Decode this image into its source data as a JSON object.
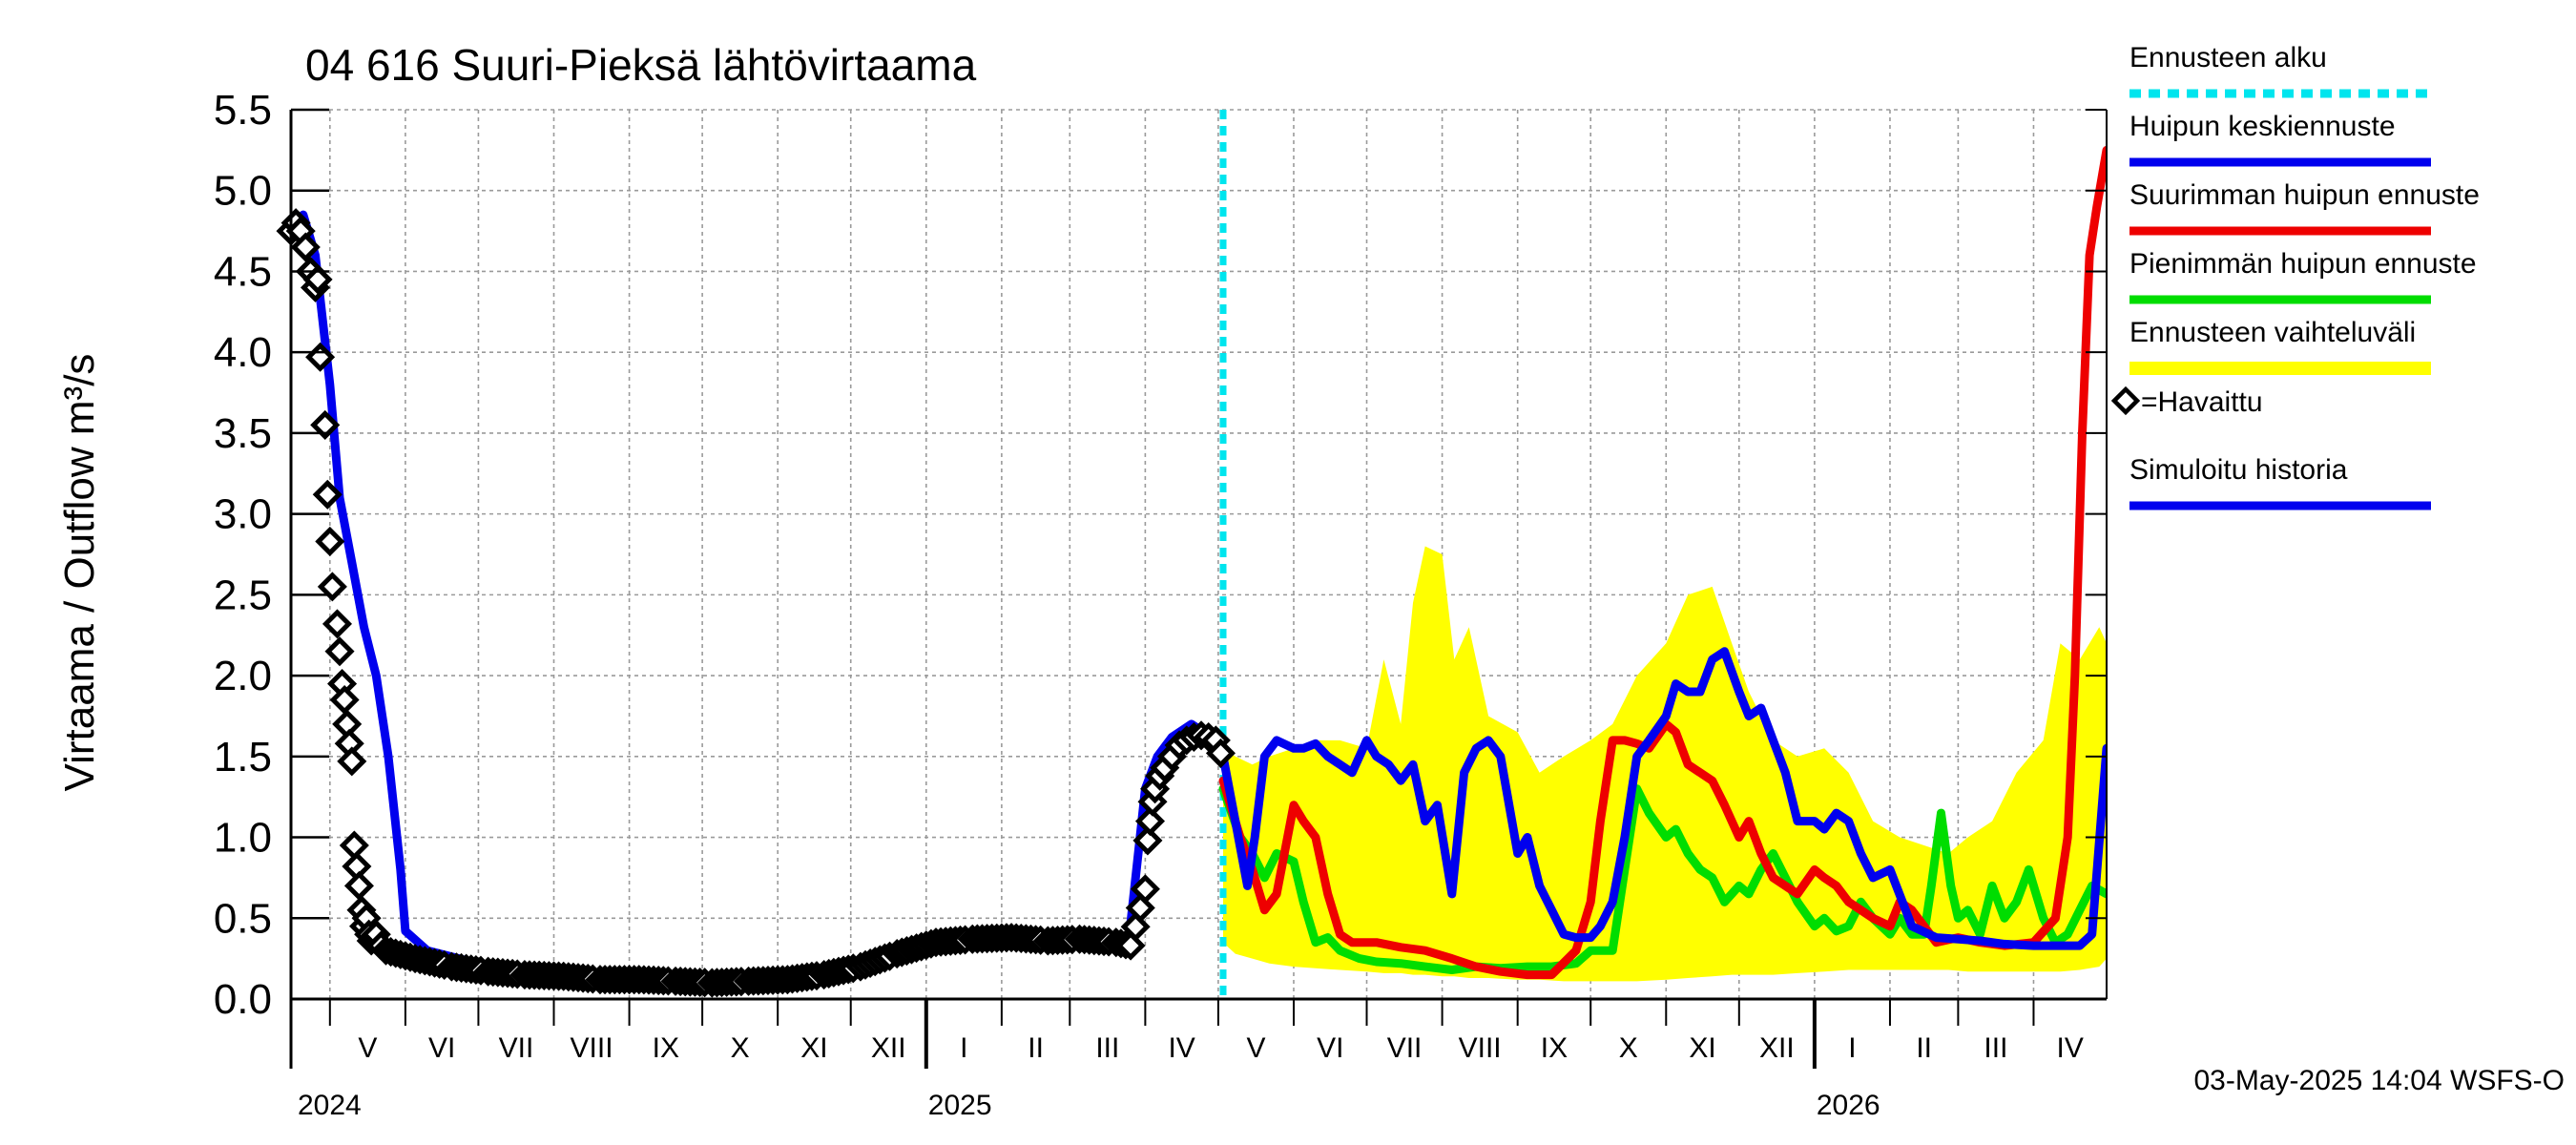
{
  "chart_data": {
    "type": "line",
    "title": "04 616 Suuri-Pieksä lähtövirtaama",
    "ylabel": "Virtaama / Outflow    m³/s",
    "ylim": [
      0.0,
      5.5
    ],
    "yticks": [
      "0.0",
      "0.5",
      "1.0",
      "1.5",
      "2.0",
      "2.5",
      "3.0",
      "3.5",
      "4.0",
      "4.5",
      "5.0",
      "5.5"
    ],
    "grid": true,
    "legend_position": "right",
    "xlim": [
      "2024-04-15",
      "2026-05-01"
    ],
    "months": [
      {
        "label": "V",
        "start": "2024-05-01"
      },
      {
        "label": "VI",
        "start": "2024-06-01"
      },
      {
        "label": "VII",
        "start": "2024-07-01"
      },
      {
        "label": "VIII",
        "start": "2024-08-01"
      },
      {
        "label": "IX",
        "start": "2024-09-01"
      },
      {
        "label": "X",
        "start": "2024-10-01"
      },
      {
        "label": "XI",
        "start": "2024-11-01"
      },
      {
        "label": "XII",
        "start": "2024-12-01"
      },
      {
        "label": "I",
        "start": "2025-01-01"
      },
      {
        "label": "II",
        "start": "2025-02-01"
      },
      {
        "label": "III",
        "start": "2025-03-01"
      },
      {
        "label": "IV",
        "start": "2025-04-01"
      },
      {
        "label": "V",
        "start": "2025-05-01"
      },
      {
        "label": "VI",
        "start": "2025-06-01"
      },
      {
        "label": "VII",
        "start": "2025-07-01"
      },
      {
        "label": "VIII",
        "start": "2025-08-01"
      },
      {
        "label": "IX",
        "start": "2025-09-01"
      },
      {
        "label": "X",
        "start": "2025-10-01"
      },
      {
        "label": "XI",
        "start": "2025-11-01"
      },
      {
        "label": "XII",
        "start": "2025-12-01"
      },
      {
        "label": "I",
        "start": "2026-01-01"
      },
      {
        "label": "II",
        "start": "2026-02-01"
      },
      {
        "label": "III",
        "start": "2026-03-01"
      },
      {
        "label": "IV",
        "start": "2026-04-01"
      }
    ],
    "years": [
      {
        "label": "2024",
        "date": "2024-04-15"
      },
      {
        "label": "2025",
        "date": "2025-01-01"
      },
      {
        "label": "2026",
        "date": "2026-01-01"
      }
    ],
    "forecast_start": "2025-05-03",
    "timestamp": "03-May-2025 14:04 WSFS-O",
    "legend": [
      {
        "label": "Ennusteen alku",
        "color": "#00e5ee",
        "style": "dashed"
      },
      {
        "label": "Huipun keskiennuste",
        "color": "#0000ee",
        "style": "line"
      },
      {
        "label": "Suurimman huipun ennuste",
        "color": "#ee0000",
        "style": "line"
      },
      {
        "label": "Pienimmän huipun ennuste",
        "color": "#00dd00",
        "style": "line"
      },
      {
        "label": "Ennusteen vaihteluväli",
        "color": "#ffff00",
        "style": "band"
      },
      {
        "label": "=Havaittu",
        "color": "#000000",
        "style": "marker"
      },
      {
        "label": "Simuloitu historia",
        "color": "#0000ee",
        "style": "line"
      }
    ],
    "series": [
      {
        "name": "Ennusteen vaihteluväli",
        "color": "#ffff00",
        "kind": "band",
        "x": [
          "2025-05-03",
          "2025-05-08",
          "2025-05-15",
          "2025-05-22",
          "2025-06-01",
          "2025-06-10",
          "2025-06-20",
          "2025-07-01",
          "2025-07-08",
          "2025-07-15",
          "2025-07-20",
          "2025-07-25",
          "2025-08-01",
          "2025-08-06",
          "2025-08-12",
          "2025-08-20",
          "2025-09-01",
          "2025-09-10",
          "2025-09-20",
          "2025-10-01",
          "2025-10-10",
          "2025-10-20",
          "2025-11-01",
          "2025-11-10",
          "2025-11-20",
          "2025-11-28",
          "2025-12-05",
          "2025-12-15",
          "2025-12-25",
          "2026-01-05",
          "2026-01-15",
          "2026-01-25",
          "2026-02-05",
          "2026-02-15",
          "2026-02-25",
          "2026-03-05",
          "2026-03-15",
          "2026-03-25",
          "2026-04-05",
          "2026-04-12",
          "2026-04-20",
          "2026-04-28",
          "2026-05-01"
        ],
        "low": [
          0.35,
          0.28,
          0.25,
          0.22,
          0.2,
          0.19,
          0.18,
          0.17,
          0.16,
          0.16,
          0.15,
          0.15,
          0.14,
          0.14,
          0.13,
          0.13,
          0.12,
          0.12,
          0.11,
          0.11,
          0.11,
          0.11,
          0.12,
          0.13,
          0.14,
          0.15,
          0.15,
          0.15,
          0.16,
          0.17,
          0.18,
          0.18,
          0.18,
          0.18,
          0.18,
          0.17,
          0.17,
          0.17,
          0.17,
          0.17,
          0.18,
          0.2,
          0.25
        ],
        "high": [
          1.55,
          1.5,
          1.45,
          1.5,
          1.55,
          1.6,
          1.6,
          1.55,
          2.1,
          1.7,
          2.45,
          2.8,
          2.75,
          2.1,
          2.3,
          1.75,
          1.65,
          1.4,
          1.5,
          1.6,
          1.7,
          2.0,
          2.2,
          2.5,
          2.55,
          2.2,
          1.9,
          1.6,
          1.5,
          1.55,
          1.4,
          1.1,
          1.0,
          0.95,
          0.9,
          1.0,
          1.1,
          1.4,
          1.6,
          2.2,
          2.1,
          2.3,
          2.2
        ]
      },
      {
        "name": "Simuloitu historia",
        "color": "#0000ee",
        "kind": "line",
        "x": [
          "2024-04-15",
          "2024-04-20",
          "2024-04-25",
          "2024-05-01",
          "2024-05-05",
          "2024-05-10",
          "2024-05-15",
          "2024-05-20",
          "2024-05-25",
          "2024-05-30",
          "2024-06-01",
          "2024-06-10",
          "2024-07-01",
          "2024-08-01",
          "2024-09-01",
          "2024-10-01",
          "2024-11-01",
          "2024-12-01",
          "2025-01-01",
          "2025-02-01",
          "2025-03-01",
          "2025-03-25",
          "2025-04-01",
          "2025-04-06",
          "2025-04-12",
          "2025-04-20",
          "2025-04-25",
          "2025-05-03"
        ],
        "y": [
          4.75,
          4.85,
          4.6,
          3.8,
          3.1,
          2.7,
          2.3,
          2.0,
          1.5,
          0.8,
          0.42,
          0.3,
          0.22,
          0.16,
          0.13,
          0.11,
          0.13,
          0.22,
          0.35,
          0.38,
          0.37,
          0.33,
          1.3,
          1.5,
          1.62,
          1.7,
          1.65,
          1.5
        ]
      },
      {
        "name": "Havaittu",
        "color": "#000000",
        "kind": "markers",
        "x": [
          "2024-04-15",
          "2024-04-17",
          "2024-04-19",
          "2024-04-21",
          "2024-04-23",
          "2024-04-25",
          "2024-04-26",
          "2024-04-27",
          "2024-04-29",
          "2024-04-30",
          "2024-05-01",
          "2024-05-02",
          "2024-05-04",
          "2024-05-05",
          "2024-05-06",
          "2024-05-07",
          "2024-05-08",
          "2024-05-09",
          "2024-05-10",
          "2024-05-11",
          "2024-05-12",
          "2024-05-13",
          "2024-05-14",
          "2024-05-15",
          "2024-05-16",
          "2024-05-17",
          "2024-05-18",
          "2024-05-19",
          "2024-05-20",
          "2024-05-22",
          "2024-05-24",
          "2024-06-05",
          "2024-06-20",
          "2024-07-05",
          "2024-07-20",
          "2024-08-05",
          "2024-08-20",
          "2024-09-05",
          "2024-09-20",
          "2024-10-05",
          "2024-10-20",
          "2024-11-05",
          "2024-11-20",
          "2024-12-05",
          "2024-12-20",
          "2025-01-05",
          "2025-01-20",
          "2025-02-05",
          "2025-02-20",
          "2025-03-05",
          "2025-03-20",
          "2025-03-26",
          "2025-04-01",
          "2025-04-02",
          "2025-04-03",
          "2025-04-04",
          "2025-04-05",
          "2025-04-07",
          "2025-04-09",
          "2025-04-12",
          "2025-04-15",
          "2025-04-18",
          "2025-04-21",
          "2025-04-24",
          "2025-04-27",
          "2025-04-30",
          "2025-05-02"
        ],
        "y": [
          4.75,
          4.8,
          4.75,
          4.65,
          4.5,
          4.4,
          4.45,
          3.97,
          3.55,
          3.12,
          2.83,
          2.55,
          2.32,
          2.15,
          1.95,
          1.85,
          1.7,
          1.58,
          1.47,
          0.95,
          0.82,
          0.7,
          0.55,
          0.45,
          0.5,
          0.4,
          0.36,
          0.38,
          0.4,
          0.33,
          0.3,
          0.25,
          0.2,
          0.17,
          0.15,
          0.14,
          0.12,
          0.12,
          0.11,
          0.1,
          0.11,
          0.12,
          0.15,
          0.2,
          0.28,
          0.35,
          0.37,
          0.38,
          0.36,
          0.37,
          0.35,
          0.33,
          0.68,
          0.98,
          1.1,
          1.22,
          1.3,
          1.38,
          1.43,
          1.5,
          1.57,
          1.6,
          1.62,
          1.63,
          1.62,
          1.6,
          1.52
        ]
      },
      {
        "name": "Pienimmän huipun ennuste",
        "color": "#00dd00",
        "kind": "line",
        "x": [
          "2025-05-03",
          "2025-05-10",
          "2025-05-15",
          "2025-05-20",
          "2025-05-25",
          "2025-06-01",
          "2025-06-05",
          "2025-06-10",
          "2025-06-15",
          "2025-06-20",
          "2025-06-28",
          "2025-07-05",
          "2025-07-15",
          "2025-07-25",
          "2025-08-05",
          "2025-08-15",
          "2025-08-25",
          "2025-09-05",
          "2025-09-15",
          "2025-09-25",
          "2025-10-01",
          "2025-10-10",
          "2025-10-15",
          "2025-10-20",
          "2025-10-25",
          "2025-11-01",
          "2025-11-05",
          "2025-11-10",
          "2025-11-15",
          "2025-11-20",
          "2025-11-25",
          "2025-12-01",
          "2025-12-05",
          "2025-12-10",
          "2025-12-15",
          "2025-12-20",
          "2025-12-25",
          "2026-01-01",
          "2026-01-05",
          "2026-01-10",
          "2026-01-15",
          "2026-01-20",
          "2026-01-25",
          "2026-02-01",
          "2026-02-05",
          "2026-02-10",
          "2026-02-15",
          "2026-02-18",
          "2026-02-22",
          "2026-02-26",
          "2026-03-01",
          "2026-03-05",
          "2026-03-10",
          "2026-03-15",
          "2026-03-20",
          "2026-03-25",
          "2026-03-30",
          "2026-04-05",
          "2026-04-10",
          "2026-04-15",
          "2026-04-20",
          "2026-04-25",
          "2026-05-01"
        ],
        "y": [
          1.3,
          1.0,
          0.9,
          0.75,
          0.9,
          0.85,
          0.6,
          0.35,
          0.38,
          0.3,
          0.25,
          0.23,
          0.22,
          0.2,
          0.18,
          0.2,
          0.19,
          0.2,
          0.2,
          0.22,
          0.3,
          0.3,
          0.8,
          1.3,
          1.15,
          1.0,
          1.05,
          0.9,
          0.8,
          0.75,
          0.6,
          0.7,
          0.65,
          0.8,
          0.9,
          0.75,
          0.6,
          0.45,
          0.5,
          0.42,
          0.45,
          0.6,
          0.5,
          0.4,
          0.5,
          0.4,
          0.4,
          0.7,
          1.15,
          0.7,
          0.5,
          0.55,
          0.4,
          0.7,
          0.5,
          0.6,
          0.8,
          0.5,
          0.35,
          0.4,
          0.55,
          0.7,
          0.65
        ]
      },
      {
        "name": "Suurimman huipun ennuste",
        "color": "#ee0000",
        "kind": "line",
        "x": [
          "2025-05-03",
          "2025-05-10",
          "2025-05-15",
          "2025-05-20",
          "2025-05-25",
          "2025-06-01",
          "2025-06-05",
          "2025-06-10",
          "2025-06-15",
          "2025-06-20",
          "2025-06-25",
          "2025-07-05",
          "2025-07-15",
          "2025-07-25",
          "2025-08-05",
          "2025-08-15",
          "2025-08-25",
          "2025-09-05",
          "2025-09-15",
          "2025-09-25",
          "2025-10-01",
          "2025-10-05",
          "2025-10-10",
          "2025-10-15",
          "2025-10-20",
          "2025-10-25",
          "2025-11-01",
          "2025-11-05",
          "2025-11-10",
          "2025-11-15",
          "2025-11-20",
          "2025-11-25",
          "2025-12-01",
          "2025-12-05",
          "2025-12-10",
          "2025-12-15",
          "2025-12-20",
          "2025-12-25",
          "2026-01-01",
          "2026-01-05",
          "2026-01-10",
          "2026-01-15",
          "2026-01-20",
          "2026-01-25",
          "2026-02-01",
          "2026-02-05",
          "2026-02-10",
          "2026-02-15",
          "2026-02-20",
          "2026-03-01",
          "2026-03-10",
          "2026-03-20",
          "2026-04-01",
          "2026-04-10",
          "2026-04-15",
          "2026-04-18",
          "2026-04-21",
          "2026-04-24",
          "2026-04-27",
          "2026-05-01"
        ],
        "y": [
          1.35,
          1.0,
          0.8,
          0.55,
          0.65,
          1.2,
          1.1,
          1.0,
          0.65,
          0.4,
          0.35,
          0.35,
          0.32,
          0.3,
          0.25,
          0.2,
          0.17,
          0.15,
          0.15,
          0.3,
          0.6,
          1.1,
          1.6,
          1.6,
          1.58,
          1.55,
          1.7,
          1.65,
          1.45,
          1.4,
          1.35,
          1.2,
          1.0,
          1.1,
          0.9,
          0.75,
          0.7,
          0.65,
          0.8,
          0.75,
          0.7,
          0.6,
          0.55,
          0.5,
          0.45,
          0.6,
          0.55,
          0.45,
          0.35,
          0.38,
          0.35,
          0.33,
          0.35,
          0.5,
          1.0,
          2.0,
          3.5,
          4.6,
          4.9,
          5.25
        ]
      },
      {
        "name": "Huipun keskiennuste",
        "color": "#0000ee",
        "kind": "line",
        "x": [
          "2025-05-03",
          "2025-05-08",
          "2025-05-13",
          "2025-05-16",
          "2025-05-20",
          "2025-05-25",
          "2025-06-01",
          "2025-06-05",
          "2025-06-10",
          "2025-06-15",
          "2025-06-20",
          "2025-06-25",
          "2025-07-01",
          "2025-07-05",
          "2025-07-10",
          "2025-07-15",
          "2025-07-20",
          "2025-07-25",
          "2025-07-30",
          "2025-08-05",
          "2025-08-10",
          "2025-08-15",
          "2025-08-20",
          "2025-08-25",
          "2025-09-01",
          "2025-09-05",
          "2025-09-10",
          "2025-09-15",
          "2025-09-20",
          "2025-09-25",
          "2025-10-01",
          "2025-10-05",
          "2025-10-10",
          "2025-10-15",
          "2025-10-20",
          "2025-10-25",
          "2025-11-01",
          "2025-11-05",
          "2025-11-10",
          "2025-11-15",
          "2025-11-20",
          "2025-11-25",
          "2025-12-01",
          "2025-12-05",
          "2025-12-10",
          "2025-12-15",
          "2025-12-20",
          "2025-12-25",
          "2026-01-01",
          "2026-01-05",
          "2026-01-10",
          "2026-01-15",
          "2026-01-20",
          "2026-01-25",
          "2026-02-01",
          "2026-02-10",
          "2026-02-20",
          "2026-03-01",
          "2026-03-10",
          "2026-03-20",
          "2026-04-01",
          "2026-04-10",
          "2026-04-20",
          "2026-04-25",
          "2026-05-01"
        ],
        "y": [
          1.5,
          1.1,
          0.7,
          1.0,
          1.5,
          1.6,
          1.55,
          1.55,
          1.58,
          1.5,
          1.45,
          1.4,
          1.6,
          1.5,
          1.45,
          1.35,
          1.45,
          1.1,
          1.2,
          0.65,
          1.4,
          1.55,
          1.6,
          1.5,
          0.9,
          1.0,
          0.7,
          0.55,
          0.4,
          0.38,
          0.38,
          0.45,
          0.6,
          1.0,
          1.5,
          1.6,
          1.75,
          1.95,
          1.9,
          1.9,
          2.1,
          2.15,
          1.9,
          1.75,
          1.8,
          1.6,
          1.4,
          1.1,
          1.1,
          1.05,
          1.15,
          1.1,
          0.9,
          0.75,
          0.8,
          0.45,
          0.38,
          0.37,
          0.36,
          0.34,
          0.33,
          0.33,
          0.33,
          0.4,
          1.55
        ]
      }
    ]
  }
}
